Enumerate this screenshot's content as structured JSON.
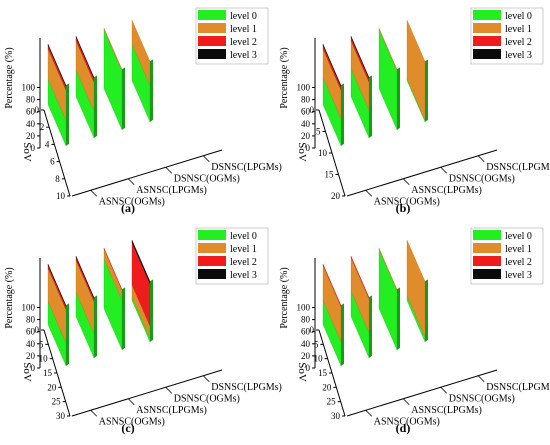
{
  "chart_data": [
    {
      "type": "area",
      "label": "(a)",
      "ylabel": "Percentage (%)",
      "xlabel": "SoV",
      "ylim": [
        0,
        100
      ],
      "yticks": [
        0,
        20,
        40,
        60,
        80,
        100
      ],
      "xticks": [
        0,
        2,
        4,
        6,
        8,
        10
      ],
      "categories": [
        "ASNSC(OGMs)",
        "ASNSC(LPGMs)",
        "DSNSC(OGMs)",
        "DSNSC(LPGMs)"
      ],
      "legend": [
        "level 0",
        "level 1",
        "level 2",
        "level 3"
      ],
      "legend_colors": [
        "#22ee22",
        "#e08c2a",
        "#ee1c1c",
        "#0a0a0a"
      ],
      "series": [
        {
          "category": "ASNSC(OGMs)",
          "stack": [
            {
              "level": "level 0",
              "value": 42
            },
            {
              "level": "level 1",
              "value": 50
            },
            {
              "level": "level 2",
              "value": 6
            },
            {
              "level": "level 3",
              "value": 2
            }
          ]
        },
        {
          "category": "ASNSC(LPGMs)",
          "stack": [
            {
              "level": "level 0",
              "value": 44
            },
            {
              "level": "level 1",
              "value": 48
            },
            {
              "level": "level 2",
              "value": 6
            },
            {
              "level": "level 3",
              "value": 2
            }
          ]
        },
        {
          "category": "DSNSC(OGMs)",
          "stack": [
            {
              "level": "level 0",
              "value": 97
            },
            {
              "level": "level 1",
              "value": 3
            },
            {
              "level": "level 2",
              "value": 0
            },
            {
              "level": "level 3",
              "value": 0
            }
          ]
        },
        {
          "category": "DSNSC(LPGMs)",
          "stack": [
            {
              "level": "level 0",
              "value": 60
            },
            {
              "level": "level 1",
              "value": 40
            },
            {
              "level": "level 2",
              "value": 0
            },
            {
              "level": "level 3",
              "value": 0
            }
          ]
        }
      ]
    },
    {
      "type": "area",
      "label": "(b)",
      "ylabel": "Percentage (%)",
      "xlabel": "SoV",
      "ylim": [
        0,
        100
      ],
      "yticks": [
        0,
        20,
        40,
        60,
        80,
        100
      ],
      "xticks": [
        0,
        5,
        10,
        15,
        20
      ],
      "categories": [
        "ASNSC(OGMs)",
        "ASNSC(LPGMs)",
        "DSNSC(OGMs)",
        "DSNSC(LPGMs)"
      ],
      "legend": [
        "level 0",
        "level 1",
        "level 2",
        "level 3"
      ],
      "legend_colors": [
        "#22ee22",
        "#e08c2a",
        "#ee1c1c",
        "#0a0a0a"
      ],
      "series": [
        {
          "category": "ASNSC(OGMs)",
          "stack": [
            {
              "level": "level 0",
              "value": 45
            },
            {
              "level": "level 1",
              "value": 47
            },
            {
              "level": "level 2",
              "value": 6
            },
            {
              "level": "level 3",
              "value": 2
            }
          ]
        },
        {
          "category": "ASNSC(LPGMs)",
          "stack": [
            {
              "level": "level 0",
              "value": 46
            },
            {
              "level": "level 1",
              "value": 46
            },
            {
              "level": "level 2",
              "value": 6
            },
            {
              "level": "level 3",
              "value": 2
            }
          ]
        },
        {
          "category": "DSNSC(OGMs)",
          "stack": [
            {
              "level": "level 0",
              "value": 98
            },
            {
              "level": "level 1",
              "value": 2
            },
            {
              "level": "level 2",
              "value": 0
            },
            {
              "level": "level 3",
              "value": 0
            }
          ]
        },
        {
          "category": "DSNSC(LPGMs)",
          "stack": [
            {
              "level": "level 0",
              "value": 3
            },
            {
              "level": "level 1",
              "value": 97
            },
            {
              "level": "level 2",
              "value": 0
            },
            {
              "level": "level 3",
              "value": 0
            }
          ]
        }
      ]
    },
    {
      "type": "area",
      "label": "(c)",
      "ylabel": "Percentage (%)",
      "xlabel": "SoV",
      "ylim": [
        0,
        100
      ],
      "yticks": [
        0,
        20,
        40,
        60,
        80,
        100
      ],
      "xticks": [
        0,
        5,
        10,
        15,
        20,
        25,
        30
      ],
      "categories": [
        "ASNSC(OGMs)",
        "ASNSC(LPGMs)",
        "DSNSC(OGMs)",
        "DSNSC(LPGMs)"
      ],
      "legend": [
        "level 0",
        "level 1",
        "level 2",
        "level 3"
      ],
      "legend_colors": [
        "#22ee22",
        "#e08c2a",
        "#ee1c1c",
        "#0a0a0a"
      ],
      "series": [
        {
          "category": "ASNSC(OGMs)",
          "stack": [
            {
              "level": "level 0",
              "value": 38
            },
            {
              "level": "level 1",
              "value": 55
            },
            {
              "level": "level 2",
              "value": 5
            },
            {
              "level": "level 3",
              "value": 2
            }
          ]
        },
        {
          "category": "ASNSC(LPGMs)",
          "stack": [
            {
              "level": "level 0",
              "value": 40
            },
            {
              "level": "level 1",
              "value": 53
            },
            {
              "level": "level 2",
              "value": 5
            },
            {
              "level": "level 3",
              "value": 2
            }
          ]
        },
        {
          "category": "DSNSC(OGMs)",
          "stack": [
            {
              "level": "level 0",
              "value": 82
            },
            {
              "level": "level 1",
              "value": 17
            },
            {
              "level": "level 2",
              "value": 1
            },
            {
              "level": "level 3",
              "value": 0
            }
          ]
        },
        {
          "category": "DSNSC(LPGMs)",
          "stack": [
            {
              "level": "level 0",
              "value": 6
            },
            {
              "level": "level 1",
              "value": 20
            },
            {
              "level": "level 2",
              "value": 70
            },
            {
              "level": "level 3",
              "value": 4
            }
          ]
        }
      ]
    },
    {
      "type": "area",
      "label": "(d)",
      "ylabel": "Percentage (%)",
      "xlabel": "SoV",
      "ylim": [
        0,
        100
      ],
      "yticks": [
        0,
        20,
        40,
        60,
        80,
        100
      ],
      "xticks": [
        0,
        5,
        10,
        15,
        20,
        25,
        30
      ],
      "categories": [
        "ASNSC(OGMs)",
        "ASNSC(LPGMs)",
        "DSNSC(OGMs)",
        "DSNSC(LPGMs)"
      ],
      "legend": [
        "level 0",
        "level 1",
        "level 2",
        "level 3"
      ],
      "legend_colors": [
        "#22ee22",
        "#e08c2a",
        "#ee1c1c",
        "#0a0a0a"
      ],
      "series": [
        {
          "category": "ASNSC(OGMs)",
          "stack": [
            {
              "level": "level 0",
              "value": 40
            },
            {
              "level": "level 1",
              "value": 58
            },
            {
              "level": "level 2",
              "value": 2
            },
            {
              "level": "level 3",
              "value": 0
            }
          ]
        },
        {
          "category": "ASNSC(LPGMs)",
          "stack": [
            {
              "level": "level 0",
              "value": 42
            },
            {
              "level": "level 1",
              "value": 56
            },
            {
              "level": "level 2",
              "value": 2
            },
            {
              "level": "level 3",
              "value": 0
            }
          ]
        },
        {
          "category": "DSNSC(OGMs)",
          "stack": [
            {
              "level": "level 0",
              "value": 98
            },
            {
              "level": "level 1",
              "value": 2
            },
            {
              "level": "level 2",
              "value": 0
            },
            {
              "level": "level 3",
              "value": 0
            }
          ]
        },
        {
          "category": "DSNSC(LPGMs)",
          "stack": [
            {
              "level": "level 0",
              "value": 8
            },
            {
              "level": "level 1",
              "value": 92
            },
            {
              "level": "level 2",
              "value": 0
            },
            {
              "level": "level 3",
              "value": 0
            }
          ]
        }
      ]
    }
  ]
}
